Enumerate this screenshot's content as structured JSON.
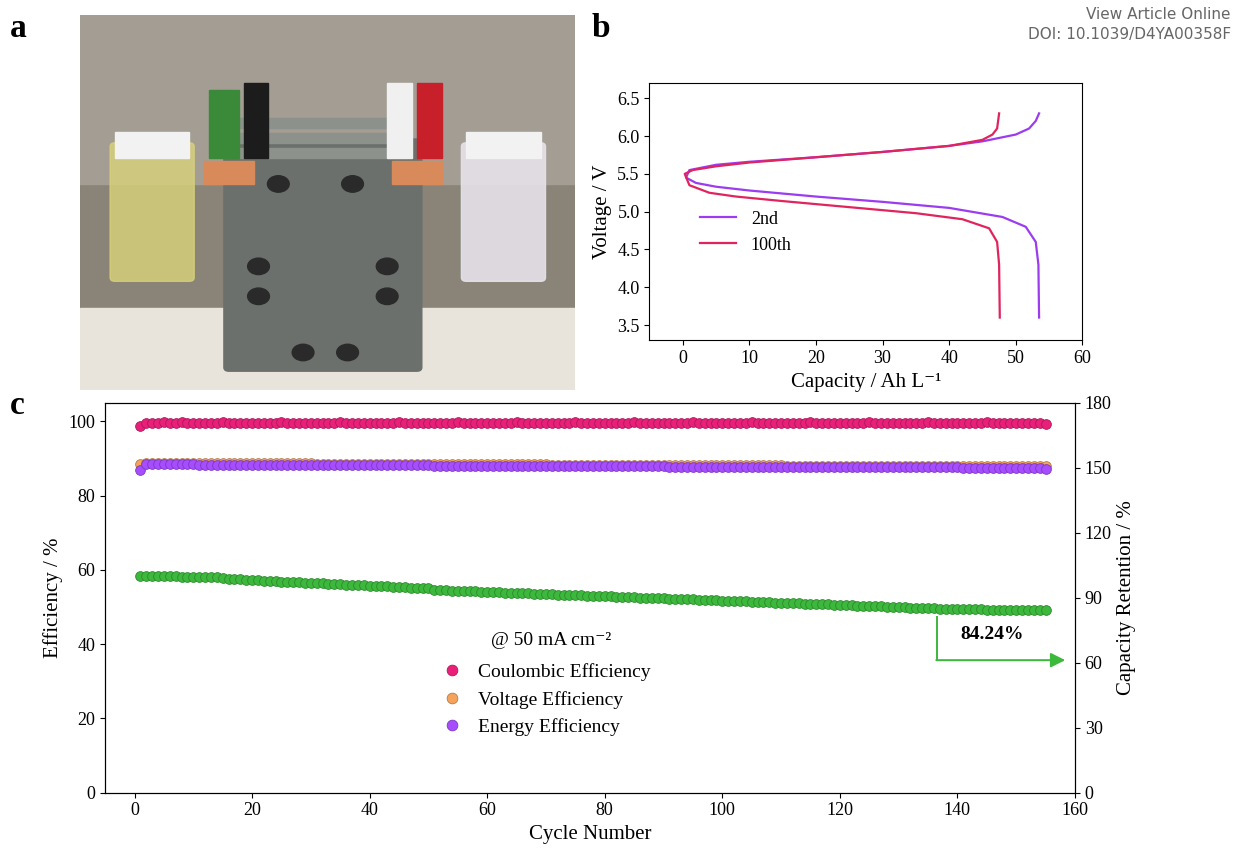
{
  "header": [
    "View Article Online",
    "DOI: 10.1039/D4YA00358F"
  ],
  "panel_a": {
    "title": "a"
  },
  "chart_data": [
    {
      "type": "line",
      "title": "b",
      "x_label": "Capacity / Ah L⁻¹",
      "y_label": "Voltage / V",
      "xlim": [
        -5,
        60
      ],
      "xticks": [
        0,
        10,
        20,
        30,
        40,
        50,
        60
      ],
      "ylim": [
        3.3,
        6.7
      ],
      "yticks": [
        3.5,
        4.0,
        4.5,
        5.0,
        5.5,
        6.0,
        6.5
      ],
      "legend": "center left",
      "series": [
        {
          "name": "2nd",
          "color": "#9b3cf0",
          "x": [
            53.5,
            53.4,
            53.0,
            51.5,
            48,
            40,
            30,
            20,
            10,
            5,
            2,
            0.5,
            1,
            5,
            10,
            20,
            30,
            40,
            45,
            50,
            52,
            53,
            53.5
          ],
          "values": [
            3.6,
            4.3,
            4.6,
            4.8,
            4.93,
            5.05,
            5.13,
            5.2,
            5.28,
            5.33,
            5.38,
            5.45,
            5.55,
            5.62,
            5.66,
            5.72,
            5.79,
            5.87,
            5.93,
            6.02,
            6.1,
            6.2,
            6.3
          ]
        },
        {
          "name": "100th",
          "color": "#e0245e",
          "x": [
            47.6,
            47.5,
            47.2,
            46,
            42,
            35,
            25,
            15,
            8,
            4,
            1,
            0.3,
            1.5,
            5,
            10,
            20,
            30,
            40,
            45,
            46.5,
            47.2,
            47.5
          ],
          "values": [
            3.6,
            4.3,
            4.6,
            4.78,
            4.9,
            4.98,
            5.06,
            5.14,
            5.2,
            5.25,
            5.35,
            5.5,
            5.55,
            5.6,
            5.65,
            5.72,
            5.79,
            5.87,
            5.95,
            6.02,
            6.1,
            6.3
          ]
        }
      ]
    },
    {
      "type": "scatter",
      "title": "c",
      "x_label": "Cycle Number",
      "y_label": "Efficiency / %",
      "y2_label": "Capacity Retention / %",
      "xlim": [
        -5,
        160
      ],
      "xticks": [
        0,
        20,
        40,
        60,
        80,
        100,
        120,
        140,
        160
      ],
      "ylim": [
        0,
        105
      ],
      "yticks": [
        0,
        20,
        40,
        60,
        80,
        100
      ],
      "y2lim": [
        0,
        180
      ],
      "y2ticks": [
        0,
        30,
        60,
        90,
        120,
        150,
        180
      ],
      "legend": "lower center",
      "annotations": [
        "@ 50 mA cm⁻²",
        "84.24%"
      ],
      "x": [
        1,
        2,
        3,
        4,
        5,
        6,
        7,
        8,
        9,
        10,
        11,
        12,
        13,
        14,
        15,
        16,
        17,
        18,
        19,
        20,
        21,
        22,
        23,
        24,
        25,
        26,
        27,
        28,
        29,
        30,
        31,
        32,
        33,
        34,
        35,
        36,
        37,
        38,
        39,
        40,
        41,
        42,
        43,
        44,
        45,
        46,
        47,
        48,
        49,
        50,
        51,
        52,
        53,
        54,
        55,
        56,
        57,
        58,
        59,
        60,
        61,
        62,
        63,
        64,
        65,
        66,
        67,
        68,
        69,
        70,
        71,
        72,
        73,
        74,
        75,
        76,
        77,
        78,
        79,
        80,
        81,
        82,
        83,
        84,
        85,
        86,
        87,
        88,
        89,
        90,
        91,
        92,
        93,
        94,
        95,
        96,
        97,
        98,
        99,
        100,
        101,
        102,
        103,
        104,
        105,
        106,
        107,
        108,
        109,
        110,
        111,
        112,
        113,
        114,
        115,
        116,
        117,
        118,
        119,
        120,
        121,
        122,
        123,
        124,
        125,
        126,
        127,
        128,
        129,
        130,
        131,
        132,
        133,
        134,
        135,
        136,
        137,
        138,
        139,
        140,
        141,
        142,
        143,
        144,
        145,
        146,
        147,
        148,
        149,
        150,
        151,
        152,
        153,
        154,
        155
      ],
      "series": [
        {
          "name": "Coulombic Efficiency",
          "color": "#e8207a",
          "marker": "circle",
          "values": [
            98.8,
            99.5,
            99.6,
            99.6,
            99.7,
            99.6,
            99.6,
            99.7,
            99.6,
            99.6,
            99.6,
            99.5,
            99.6,
            99.6,
            99.7,
            99.6,
            99.5,
            99.6,
            99.6,
            99.6,
            99.6,
            99.5,
            99.6,
            99.6,
            99.7,
            99.6,
            99.5,
            99.6,
            99.6,
            99.6,
            99.6,
            99.5,
            99.6,
            99.6,
            99.7,
            99.6,
            99.5,
            99.6,
            99.6,
            99.6,
            99.6,
            99.5,
            99.6,
            99.6,
            99.7,
            99.6,
            99.5,
            99.6,
            99.6,
            99.6,
            99.6,
            99.5,
            99.6,
            99.6,
            99.7,
            99.6,
            99.5,
            99.6,
            99.6,
            99.6,
            99.6,
            99.5,
            99.6,
            99.6,
            99.7,
            99.6,
            99.5,
            99.6,
            99.6,
            99.6,
            99.6,
            99.5,
            99.6,
            99.6,
            99.7,
            99.6,
            99.5,
            99.6,
            99.6,
            99.6,
            99.6,
            99.5,
            99.6,
            99.6,
            99.7,
            99.6,
            99.5,
            99.6,
            99.6,
            99.6,
            99.6,
            99.5,
            99.6,
            99.6,
            99.7,
            99.6,
            99.5,
            99.6,
            99.6,
            99.6,
            99.6,
            99.5,
            99.6,
            99.6,
            99.7,
            99.6,
            99.5,
            99.6,
            99.6,
            99.6,
            99.6,
            99.5,
            99.6,
            99.6,
            99.7,
            99.6,
            99.5,
            99.6,
            99.6,
            99.6,
            99.6,
            99.5,
            99.6,
            99.6,
            99.7,
            99.6,
            99.5,
            99.6,
            99.6,
            99.6,
            99.6,
            99.5,
            99.6,
            99.6,
            99.7,
            99.6,
            99.5,
            99.6,
            99.6,
            99.6,
            99.6,
            99.5,
            99.6,
            99.6,
            99.7,
            99.6,
            99.5,
            99.6,
            99.6,
            99.6,
            99.6,
            99.5,
            99.6,
            99.6,
            99.4
          ]
        },
        {
          "name": "Voltage Efficiency",
          "color": "#f5a35c",
          "marker": "circle",
          "values": [
            88.5,
            88.8,
            88.8,
            88.8,
            88.8,
            88.8,
            88.8,
            88.8,
            88.8,
            88.8,
            88.7,
            88.7,
            88.7,
            88.7,
            88.7,
            88.7,
            88.7,
            88.7,
            88.7,
            88.7,
            88.7,
            88.7,
            88.7,
            88.7,
            88.7,
            88.7,
            88.7,
            88.7,
            88.7,
            88.7,
            88.6,
            88.6,
            88.6,
            88.6,
            88.6,
            88.6,
            88.6,
            88.6,
            88.6,
            88.6,
            88.6,
            88.6,
            88.6,
            88.6,
            88.6,
            88.6,
            88.6,
            88.6,
            88.6,
            88.6,
            88.4,
            88.4,
            88.4,
            88.4,
            88.4,
            88.4,
            88.4,
            88.4,
            88.4,
            88.4,
            88.4,
            88.4,
            88.4,
            88.4,
            88.4,
            88.4,
            88.4,
            88.4,
            88.4,
            88.4,
            88.3,
            88.3,
            88.3,
            88.3,
            88.3,
            88.3,
            88.3,
            88.3,
            88.3,
            88.3,
            88.3,
            88.3,
            88.3,
            88.3,
            88.3,
            88.3,
            88.3,
            88.3,
            88.3,
            88.3,
            88.2,
            88.2,
            88.2,
            88.2,
            88.2,
            88.2,
            88.2,
            88.2,
            88.2,
            88.2,
            88.2,
            88.2,
            88.2,
            88.2,
            88.2,
            88.2,
            88.2,
            88.2,
            88.2,
            88.2,
            88.1,
            88.1,
            88.1,
            88.1,
            88.1,
            88.1,
            88.1,
            88.1,
            88.1,
            88.1,
            88.0,
            88.0,
            88.0,
            88.0,
            88.0,
            88.0,
            88.0,
            88.0,
            88.0,
            88.0,
            88.0,
            88.0,
            88.0,
            88.0,
            88.0,
            88.0,
            88.0,
            88.0,
            88.0,
            88.0,
            87.9,
            87.9,
            87.9,
            87.9,
            87.9,
            87.9,
            87.9,
            87.9,
            87.9,
            87.9,
            87.9,
            87.9,
            87.9,
            87.9,
            87.9
          ]
        },
        {
          "name": "Energy Efficiency",
          "color": "#a64dff",
          "marker": "circle",
          "values": [
            86.8,
            88.4,
            88.4,
            88.4,
            88.4,
            88.4,
            88.4,
            88.4,
            88.4,
            88.4,
            88.3,
            88.3,
            88.3,
            88.3,
            88.3,
            88.3,
            88.3,
            88.3,
            88.3,
            88.3,
            88.3,
            88.3,
            88.3,
            88.3,
            88.3,
            88.3,
            88.3,
            88.3,
            88.3,
            88.3,
            88.2,
            88.2,
            88.2,
            88.2,
            88.2,
            88.2,
            88.2,
            88.2,
            88.2,
            88.2,
            88.2,
            88.2,
            88.2,
            88.2,
            88.2,
            88.2,
            88.2,
            88.2,
            88.2,
            88.2,
            87.9,
            87.9,
            87.9,
            87.9,
            87.9,
            87.9,
            87.9,
            87.9,
            87.9,
            87.9,
            88.0,
            88.0,
            88.0,
            88.0,
            88.0,
            88.0,
            88.0,
            88.0,
            88.0,
            88.0,
            87.9,
            87.9,
            87.9,
            87.9,
            87.9,
            87.9,
            87.9,
            87.9,
            87.9,
            87.9,
            87.9,
            87.9,
            87.9,
            87.9,
            87.9,
            87.9,
            87.9,
            87.9,
            87.9,
            87.9,
            87.8,
            87.8,
            87.8,
            87.8,
            87.8,
            87.8,
            87.8,
            87.8,
            87.8,
            87.8,
            87.8,
            87.8,
            87.8,
            87.8,
            87.8,
            87.8,
            87.8,
            87.8,
            87.8,
            87.8,
            87.7,
            87.7,
            87.7,
            87.7,
            87.7,
            87.7,
            87.7,
            87.7,
            87.7,
            87.7,
            87.6,
            87.6,
            87.6,
            87.6,
            87.6,
            87.6,
            87.6,
            87.6,
            87.6,
            87.6,
            87.6,
            87.6,
            87.6,
            87.6,
            87.6,
            87.6,
            87.6,
            87.6,
            87.6,
            87.6,
            87.5,
            87.5,
            87.5,
            87.5,
            87.5,
            87.5,
            87.5,
            87.5,
            87.5,
            87.5,
            87.5,
            87.5,
            87.4,
            87.4,
            87.3
          ]
        },
        {
          "axis": "y2",
          "color": "#3cb83c",
          "marker": "circle",
          "values": [
            100.0,
            100.1,
            100.0,
            100.0,
            99.9,
            99.9,
            99.9,
            99.8,
            99.8,
            99.8,
            99.8,
            99.7,
            99.7,
            99.5,
            99.0,
            98.8,
            98.6,
            98.5,
            98.3,
            98.1,
            98.0,
            97.9,
            97.7,
            97.6,
            97.5,
            97.4,
            97.2,
            97.1,
            97.0,
            96.9,
            96.7,
            96.6,
            96.5,
            96.4,
            96.2,
            96.1,
            96.0,
            95.9,
            95.7,
            95.6,
            95.5,
            95.3,
            95.2,
            95.1,
            95.0,
            94.8,
            94.7,
            94.6,
            94.4,
            94.3,
            93.6,
            93.5,
            93.4,
            93.3,
            93.2,
            93.1,
            93.0,
            92.9,
            92.8,
            92.7,
            92.6,
            92.5,
            92.4,
            92.3,
            92.2,
            92.1,
            92.0,
            91.9,
            91.8,
            91.7,
            91.6,
            91.5,
            91.4,
            91.3,
            91.2,
            91.1,
            91.0,
            90.9,
            90.8,
            90.7,
            90.6,
            90.5,
            90.4,
            90.3,
            90.2,
            90.1,
            90.0,
            89.9,
            89.8,
            89.7,
            89.6,
            89.5,
            89.4,
            89.3,
            89.2,
            89.1,
            89.0,
            88.9,
            88.8,
            88.7,
            88.6,
            88.5,
            88.4,
            88.3,
            88.2,
            88.1,
            88.0,
            87.9,
            87.8,
            87.7,
            87.6,
            87.5,
            87.4,
            87.3,
            87.2,
            87.1,
            87.0,
            86.9,
            86.8,
            86.7,
            86.6,
            86.5,
            86.4,
            86.3,
            86.2,
            86.1,
            86.0,
            85.9,
            85.8,
            85.7,
            85.6,
            85.5,
            85.4,
            85.3,
            85.2,
            85.1,
            85.0,
            84.9,
            84.8,
            84.8,
            84.7,
            84.7,
            84.6,
            84.6,
            84.5,
            84.5,
            84.4,
            84.4,
            84.3,
            84.3,
            84.3,
            84.3,
            84.2,
            84.2,
            84.24
          ]
        }
      ]
    }
  ]
}
